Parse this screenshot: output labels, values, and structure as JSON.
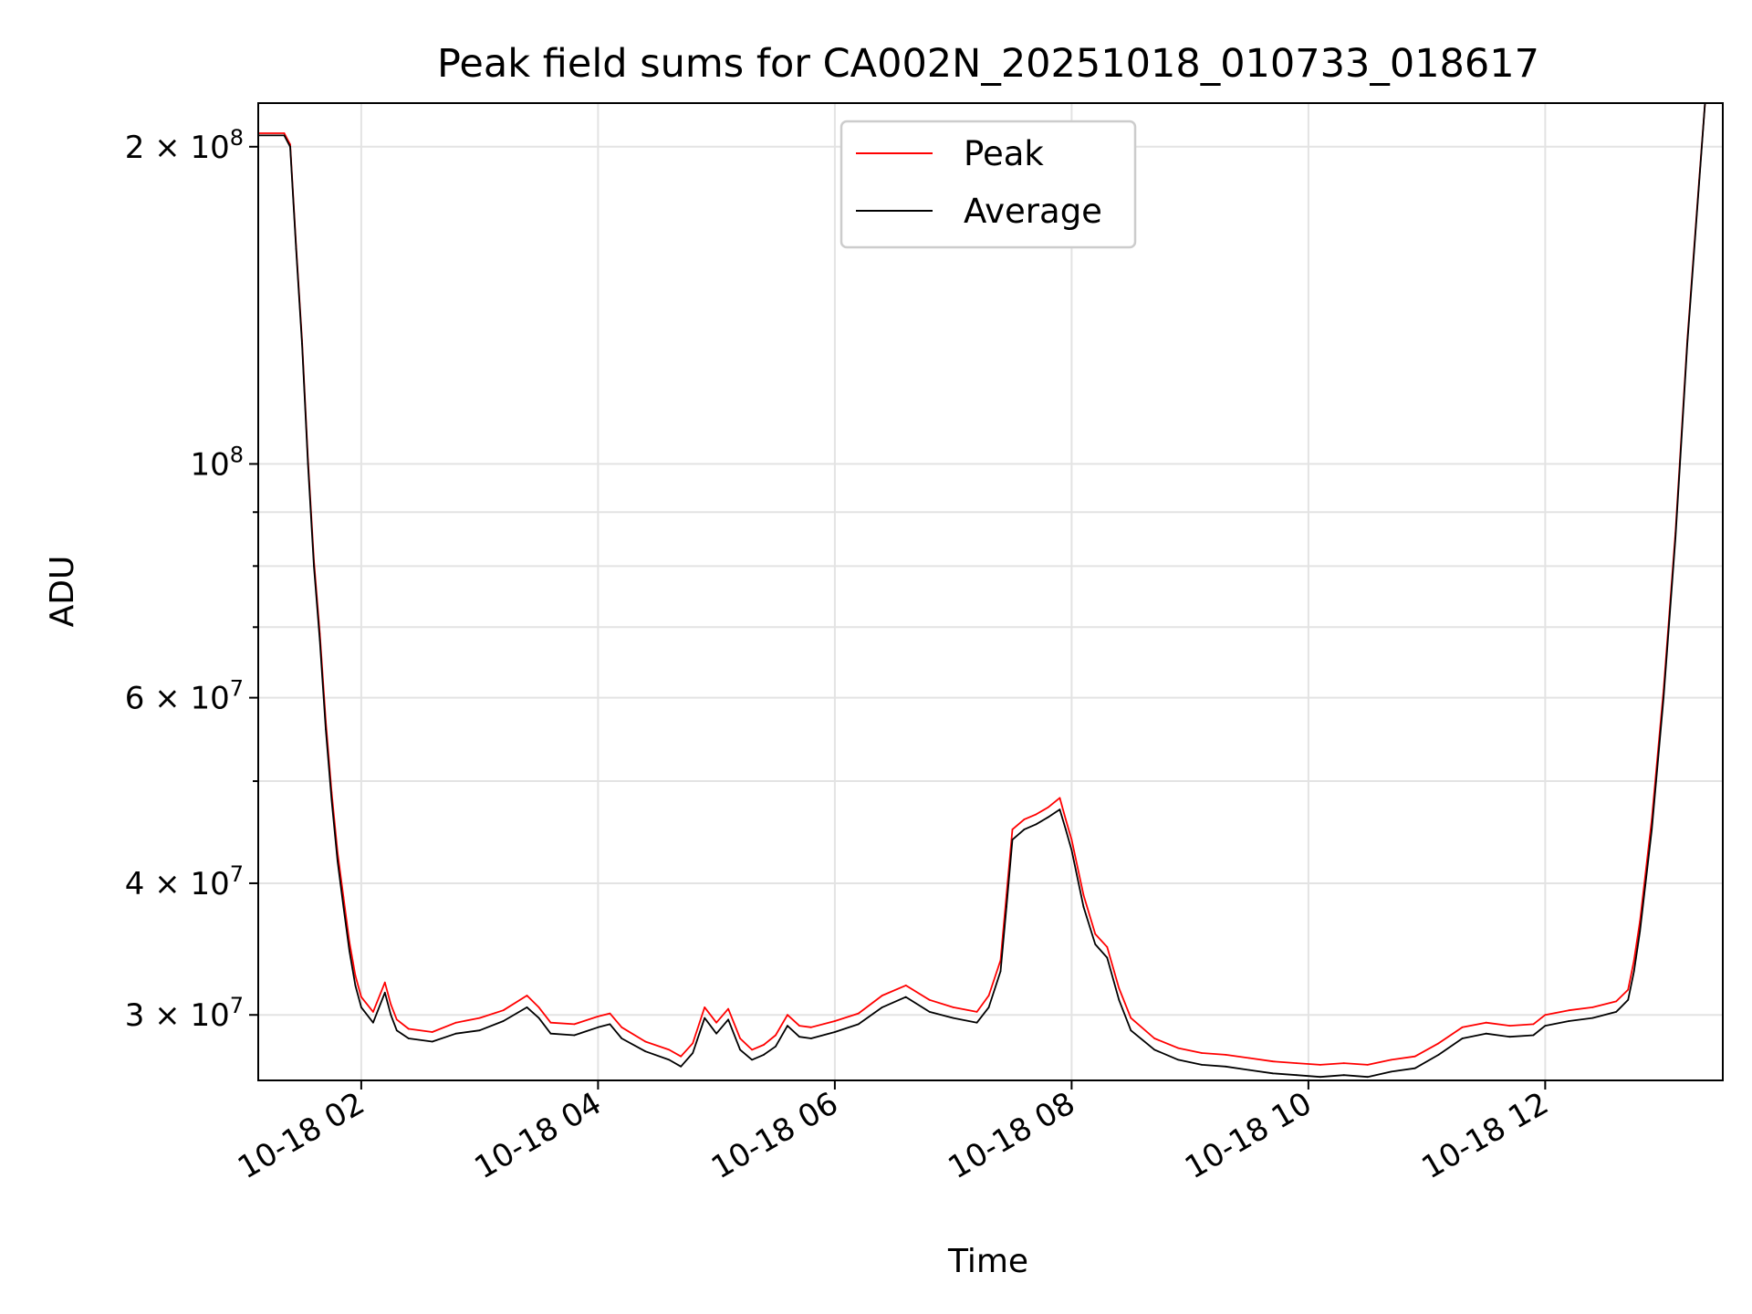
{
  "chart_data": {
    "type": "line",
    "title": "Peak field sums for CA002N_20251018_010733_018617",
    "xlabel": "Time",
    "ylabel": "ADU",
    "yscale": "log",
    "xlim_hours": [
      1.13,
      13.5
    ],
    "ylim": [
      26000000,
      220000000
    ],
    "x_ticks": [
      {
        "hours": 2,
        "label": "10-18 02"
      },
      {
        "hours": 4,
        "label": "10-18 04"
      },
      {
        "hours": 6,
        "label": "10-18 06"
      },
      {
        "hours": 8,
        "label": "10-18 08"
      },
      {
        "hours": 10,
        "label": "10-18 10"
      },
      {
        "hours": 12,
        "label": "10-18 12"
      }
    ],
    "y_ticks": [
      {
        "value": 30000000,
        "base": "3 × 10",
        "exp": "7"
      },
      {
        "value": 40000000,
        "base": "4 × 10",
        "exp": "7"
      },
      {
        "value": 60000000,
        "base": "6 × 10",
        "exp": "7"
      },
      {
        "value": 100000000,
        "base": "10",
        "exp": "8"
      },
      {
        "value": 200000000,
        "base": "2 × 10",
        "exp": "8"
      }
    ],
    "minor_y_ticks": [
      50000000,
      70000000,
      80000000,
      90000000
    ],
    "legend": {
      "position": "upper-center",
      "entries": [
        {
          "label": "Peak",
          "color": "#ff0000"
        },
        {
          "label": "Average",
          "color": "#000000"
        }
      ]
    },
    "series": [
      {
        "name": "Average",
        "color": "#000000",
        "points": [
          [
            1.13,
            205000000
          ],
          [
            1.35,
            205000000
          ],
          [
            1.4,
            200000000
          ],
          [
            1.45,
            160000000
          ],
          [
            1.5,
            130000000
          ],
          [
            1.55,
            100000000
          ],
          [
            1.6,
            80000000
          ],
          [
            1.65,
            68000000
          ],
          [
            1.7,
            56000000
          ],
          [
            1.75,
            48000000
          ],
          [
            1.8,
            42000000
          ],
          [
            1.85,
            38000000
          ],
          [
            1.9,
            34500000
          ],
          [
            1.95,
            32000000
          ],
          [
            2.0,
            30500000
          ],
          [
            2.1,
            29500000
          ],
          [
            2.2,
            31500000
          ],
          [
            2.25,
            30000000
          ],
          [
            2.3,
            29000000
          ],
          [
            2.4,
            28500000
          ],
          [
            2.6,
            28300000
          ],
          [
            2.8,
            28800000
          ],
          [
            3.0,
            29000000
          ],
          [
            3.2,
            29600000
          ],
          [
            3.4,
            30500000
          ],
          [
            3.5,
            29800000
          ],
          [
            3.6,
            28800000
          ],
          [
            3.8,
            28700000
          ],
          [
            4.0,
            29200000
          ],
          [
            4.1,
            29400000
          ],
          [
            4.2,
            28500000
          ],
          [
            4.4,
            27700000
          ],
          [
            4.6,
            27200000
          ],
          [
            4.7,
            26800000
          ],
          [
            4.8,
            27600000
          ],
          [
            4.9,
            29800000
          ],
          [
            5.0,
            28800000
          ],
          [
            5.1,
            29700000
          ],
          [
            5.2,
            27800000
          ],
          [
            5.3,
            27200000
          ],
          [
            5.4,
            27500000
          ],
          [
            5.5,
            28000000
          ],
          [
            5.6,
            29300000
          ],
          [
            5.7,
            28600000
          ],
          [
            5.8,
            28500000
          ],
          [
            6.0,
            28900000
          ],
          [
            6.2,
            29400000
          ],
          [
            6.4,
            30500000
          ],
          [
            6.6,
            31200000
          ],
          [
            6.8,
            30200000
          ],
          [
            7.0,
            29800000
          ],
          [
            7.2,
            29500000
          ],
          [
            7.3,
            30500000
          ],
          [
            7.4,
            33000000
          ],
          [
            7.45,
            38000000
          ],
          [
            7.5,
            44000000
          ],
          [
            7.6,
            45000000
          ],
          [
            7.7,
            45500000
          ],
          [
            7.8,
            46200000
          ],
          [
            7.9,
            47000000
          ],
          [
            7.95,
            45000000
          ],
          [
            8.0,
            43000000
          ],
          [
            8.1,
            38000000
          ],
          [
            8.2,
            35000000
          ],
          [
            8.3,
            34000000
          ],
          [
            8.4,
            31000000
          ],
          [
            8.5,
            29000000
          ],
          [
            8.7,
            27800000
          ],
          [
            8.9,
            27200000
          ],
          [
            9.1,
            26900000
          ],
          [
            9.3,
            26800000
          ],
          [
            9.5,
            26600000
          ],
          [
            9.7,
            26400000
          ],
          [
            9.9,
            26300000
          ],
          [
            10.1,
            26200000
          ],
          [
            10.3,
            26300000
          ],
          [
            10.5,
            26200000
          ],
          [
            10.7,
            26500000
          ],
          [
            10.9,
            26700000
          ],
          [
            11.1,
            27500000
          ],
          [
            11.3,
            28500000
          ],
          [
            11.5,
            28800000
          ],
          [
            11.7,
            28600000
          ],
          [
            11.9,
            28700000
          ],
          [
            12.0,
            29300000
          ],
          [
            12.2,
            29600000
          ],
          [
            12.4,
            29800000
          ],
          [
            12.6,
            30200000
          ],
          [
            12.7,
            31000000
          ],
          [
            12.75,
            33000000
          ],
          [
            12.8,
            36000000
          ],
          [
            12.9,
            45000000
          ],
          [
            13.0,
            60000000
          ],
          [
            13.1,
            85000000
          ],
          [
            13.2,
            130000000
          ],
          [
            13.3,
            185000000
          ],
          [
            13.35,
            220000000
          ]
        ]
      },
      {
        "name": "Peak",
        "color": "#ff0000",
        "points": [
          [
            1.13,
            206000000
          ],
          [
            1.35,
            206000000
          ],
          [
            1.4,
            201000000
          ],
          [
            1.45,
            161000000
          ],
          [
            1.5,
            131000000
          ],
          [
            1.55,
            101000000
          ],
          [
            1.6,
            81000000
          ],
          [
            1.65,
            69000000
          ],
          [
            1.7,
            57000000
          ],
          [
            1.75,
            48800000
          ],
          [
            1.8,
            42800000
          ],
          [
            1.85,
            38800000
          ],
          [
            1.9,
            35200000
          ],
          [
            1.95,
            32700000
          ],
          [
            2.0,
            31200000
          ],
          [
            2.1,
            30200000
          ],
          [
            2.2,
            32200000
          ],
          [
            2.25,
            30700000
          ],
          [
            2.3,
            29700000
          ],
          [
            2.4,
            29100000
          ],
          [
            2.6,
            28900000
          ],
          [
            2.8,
            29500000
          ],
          [
            3.0,
            29800000
          ],
          [
            3.2,
            30300000
          ],
          [
            3.4,
            31300000
          ],
          [
            3.5,
            30500000
          ],
          [
            3.6,
            29500000
          ],
          [
            3.8,
            29400000
          ],
          [
            4.0,
            29900000
          ],
          [
            4.1,
            30100000
          ],
          [
            4.2,
            29200000
          ],
          [
            4.4,
            28300000
          ],
          [
            4.6,
            27800000
          ],
          [
            4.7,
            27400000
          ],
          [
            4.8,
            28200000
          ],
          [
            4.9,
            30500000
          ],
          [
            5.0,
            29500000
          ],
          [
            5.1,
            30400000
          ],
          [
            5.2,
            28500000
          ],
          [
            5.3,
            27800000
          ],
          [
            5.4,
            28100000
          ],
          [
            5.5,
            28700000
          ],
          [
            5.6,
            30000000
          ],
          [
            5.7,
            29300000
          ],
          [
            5.8,
            29200000
          ],
          [
            6.0,
            29600000
          ],
          [
            6.2,
            30100000
          ],
          [
            6.4,
            31300000
          ],
          [
            6.6,
            32000000
          ],
          [
            6.8,
            31000000
          ],
          [
            7.0,
            30500000
          ],
          [
            7.2,
            30200000
          ],
          [
            7.3,
            31300000
          ],
          [
            7.4,
            33800000
          ],
          [
            7.45,
            39000000
          ],
          [
            7.5,
            45000000
          ],
          [
            7.6,
            46000000
          ],
          [
            7.7,
            46500000
          ],
          [
            7.8,
            47200000
          ],
          [
            7.9,
            48200000
          ],
          [
            7.95,
            46000000
          ],
          [
            8.0,
            44000000
          ],
          [
            8.1,
            39000000
          ],
          [
            8.2,
            35800000
          ],
          [
            8.3,
            34800000
          ],
          [
            8.4,
            31800000
          ],
          [
            8.5,
            29800000
          ],
          [
            8.7,
            28500000
          ],
          [
            8.9,
            27900000
          ],
          [
            9.1,
            27600000
          ],
          [
            9.3,
            27500000
          ],
          [
            9.5,
            27300000
          ],
          [
            9.7,
            27100000
          ],
          [
            9.9,
            27000000
          ],
          [
            10.1,
            26900000
          ],
          [
            10.3,
            27000000
          ],
          [
            10.5,
            26900000
          ],
          [
            10.7,
            27200000
          ],
          [
            10.9,
            27400000
          ],
          [
            11.1,
            28200000
          ],
          [
            11.3,
            29200000
          ],
          [
            11.5,
            29500000
          ],
          [
            11.7,
            29300000
          ],
          [
            11.9,
            29400000
          ],
          [
            12.0,
            30000000
          ],
          [
            12.2,
            30300000
          ],
          [
            12.4,
            30500000
          ],
          [
            12.6,
            30900000
          ],
          [
            12.7,
            31700000
          ],
          [
            12.75,
            33800000
          ],
          [
            12.8,
            36800000
          ],
          [
            12.9,
            46000000
          ],
          [
            13.0,
            61000000
          ],
          [
            13.1,
            86000000
          ],
          [
            13.2,
            131000000
          ],
          [
            13.3,
            186000000
          ],
          [
            13.35,
            220000000
          ]
        ]
      }
    ]
  }
}
